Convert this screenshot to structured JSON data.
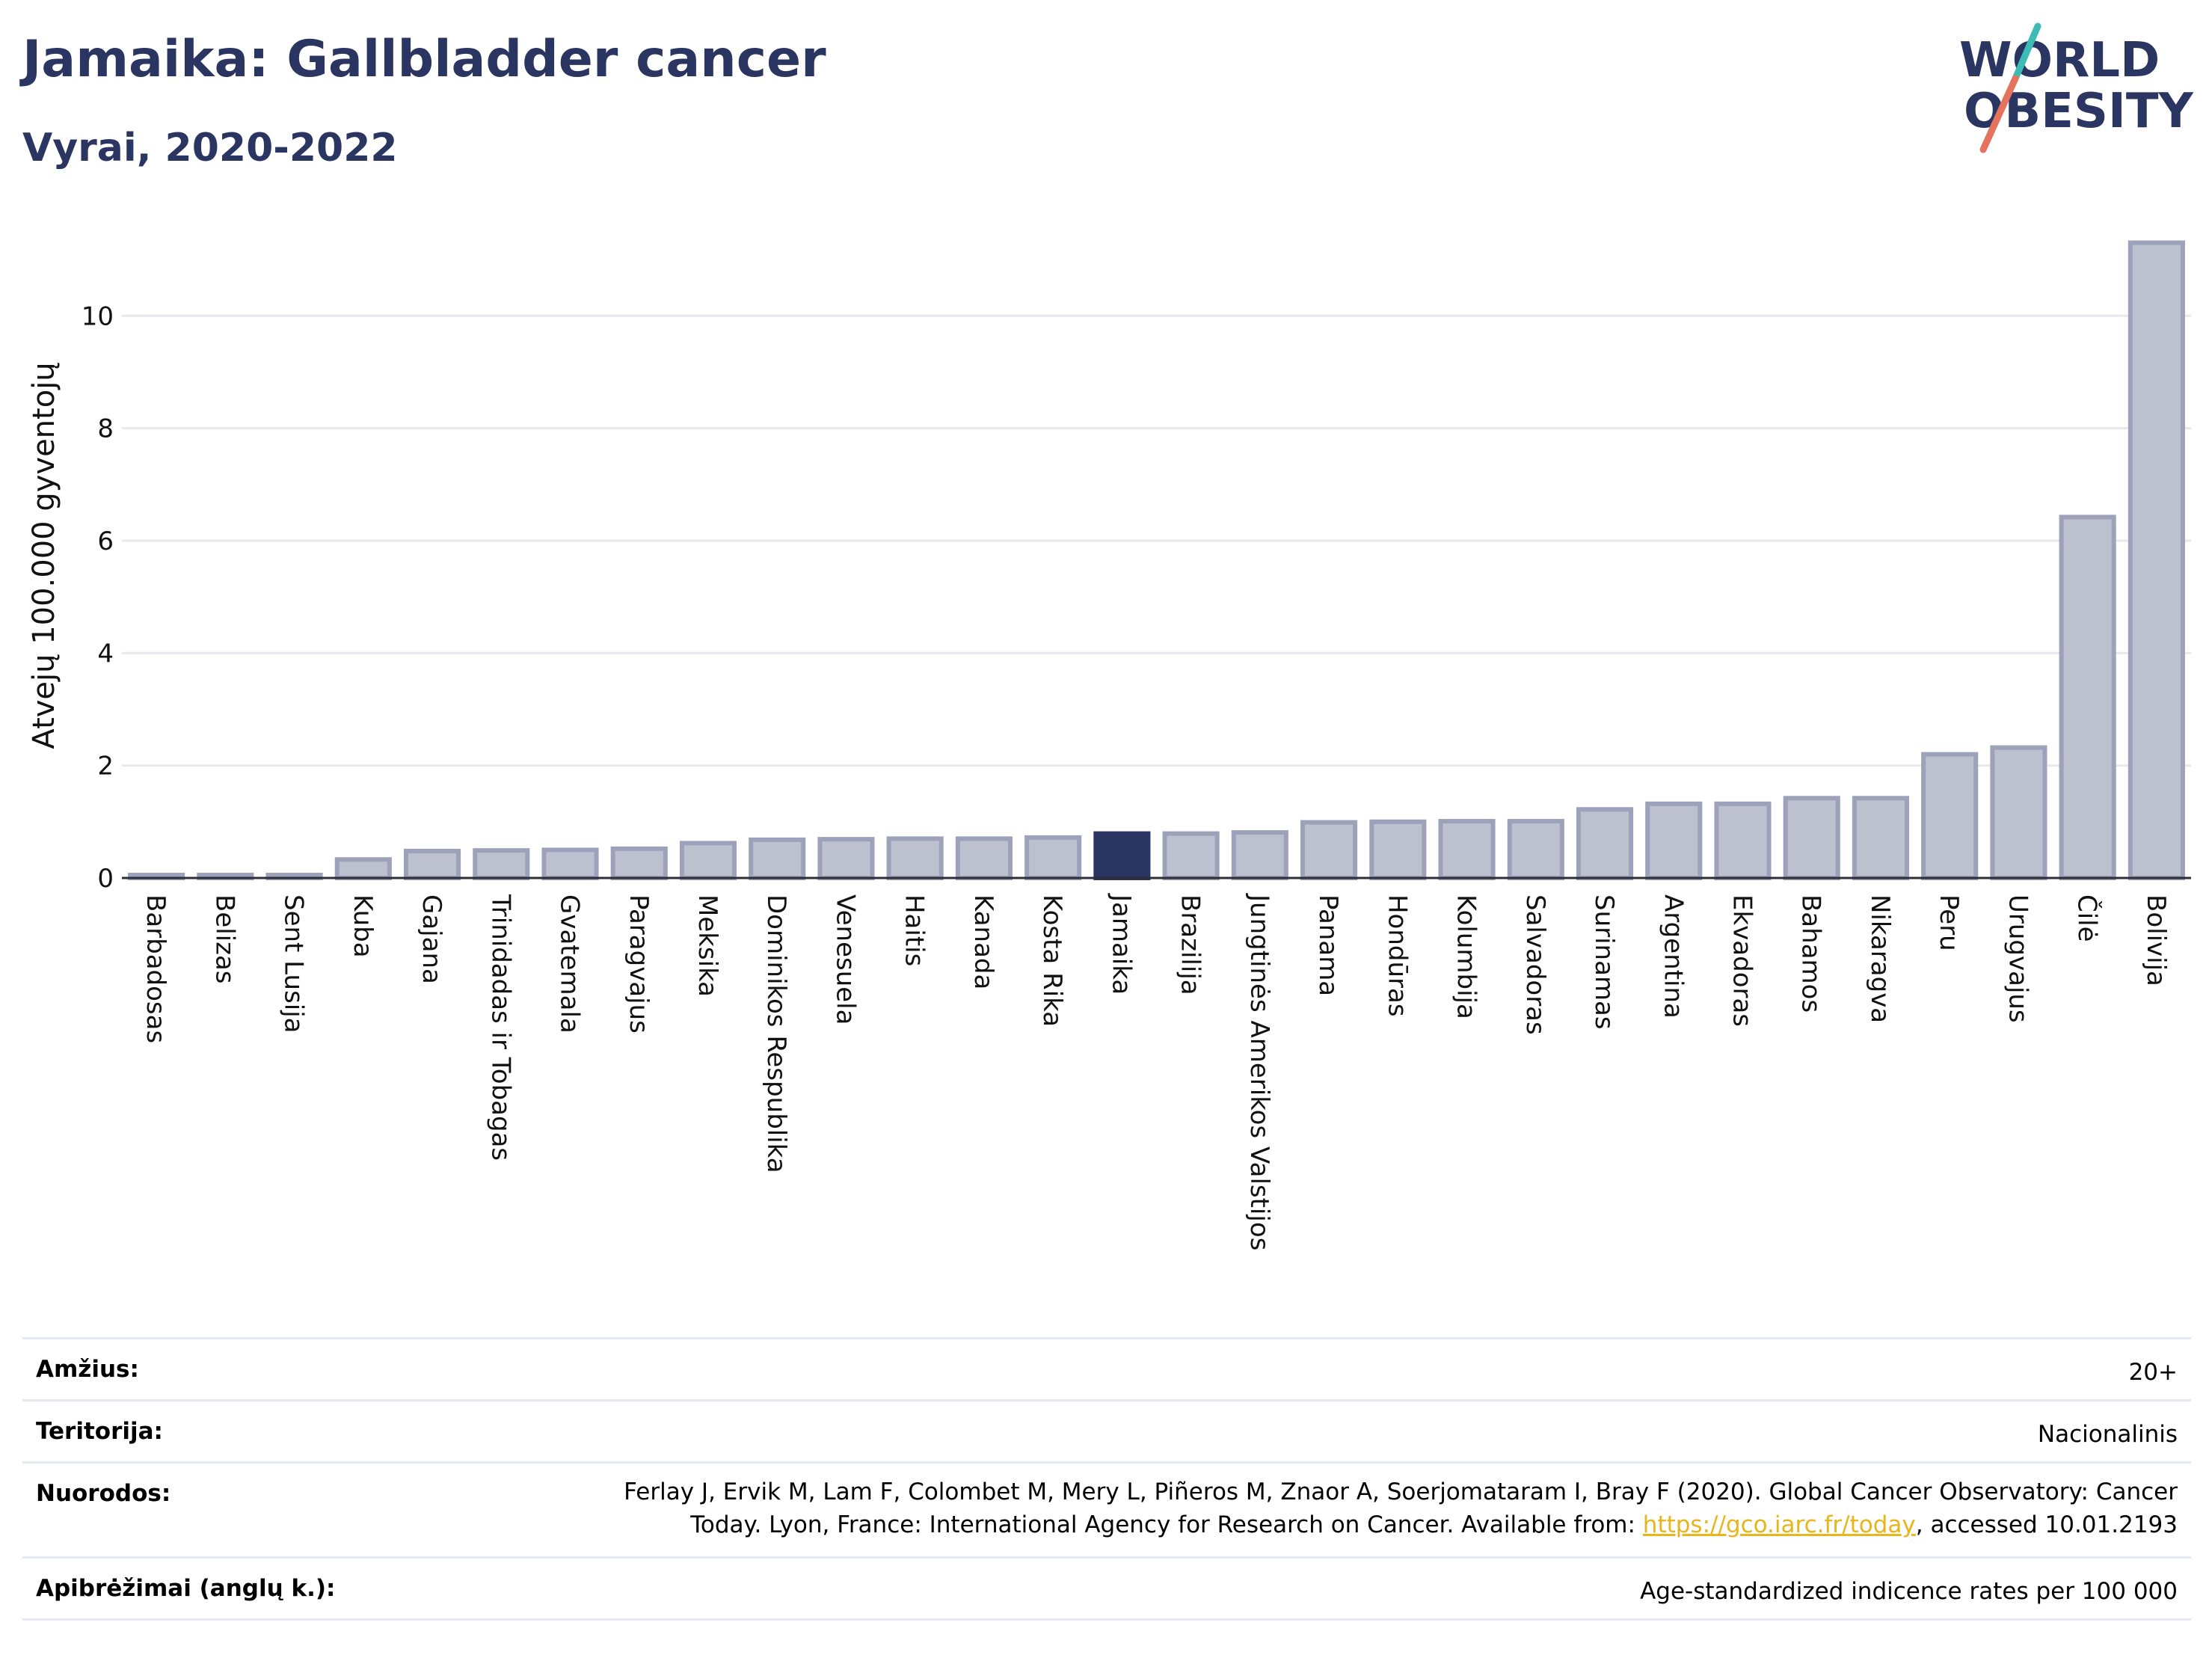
{
  "header": {
    "title": "Jamaika: Gallbladder cancer",
    "subtitle": "Vyrai, 2020-2022"
  },
  "logo": {
    "line1": "WORLD",
    "line2": "OBESITY",
    "colors": {
      "text": "#2b3562",
      "slash_top": "#3dbcb5",
      "slash_bottom": "#e5735d"
    }
  },
  "chart_data": {
    "type": "bar",
    "ylabel": "Atvejų 100.000 gyventojų",
    "ylim": [
      0,
      11.6
    ],
    "yticks": [
      0,
      2,
      4,
      6,
      8,
      10
    ],
    "grid": true,
    "highlight": "Jamaika",
    "colors": {
      "bar": "#bcc0cf",
      "bar_border": "#9da2ba",
      "highlight": "#2b3562"
    },
    "categories": [
      "Barbadosas",
      "Belizas",
      "Sent Lusija",
      "Kuba",
      "Gajana",
      "Trinidadas ir Tobagas",
      "Gvatemala",
      "Paragvajus",
      "Meksika",
      "Dominikos Respublika",
      "Venesuela",
      "Haitis",
      "Kanada",
      "Kosta Rika",
      "Jamaika",
      "Brazilija",
      "Jungtinės Amerikos Valstijos",
      "Panama",
      "Hondūras",
      "Kolumbija",
      "Salvadoras",
      "Surinamas",
      "Argentina",
      "Ekvadoras",
      "Bahamos",
      "Nikaragva",
      "Peru",
      "Urugvajus",
      "Čilė",
      "Bolivija"
    ],
    "values": [
      0.05,
      0.05,
      0.05,
      0.33,
      0.48,
      0.49,
      0.5,
      0.52,
      0.62,
      0.68,
      0.69,
      0.7,
      0.7,
      0.72,
      0.79,
      0.79,
      0.81,
      0.99,
      1.0,
      1.01,
      1.01,
      1.22,
      1.32,
      1.32,
      1.42,
      1.42,
      2.2,
      2.32,
      6.42,
      11.3
    ]
  },
  "meta": {
    "age_label": "Amžius:",
    "age_value": "20+",
    "territory_label": "Teritorija:",
    "territory_value": "Nacionalinis",
    "references_label": "Nuorodos:",
    "references_line1": "Ferlay J, Ervik M, Lam F, Colombet M, Mery L, Piñeros M, Znaor A, Soerjomataram I, Bray F (2020). Global Cancer Observatory: Cancer",
    "references_line2_pre": "Today. Lyon, France: International Agency for Research on Cancer. Available from: ",
    "references_link": "https://gco.iarc.fr/today",
    "references_line2_post": ", accessed 10.01.2193",
    "definitions_label": "Apibrėžimai (anglų k.):",
    "definitions_value": "Age-standardized indicence rates per 100 000"
  }
}
